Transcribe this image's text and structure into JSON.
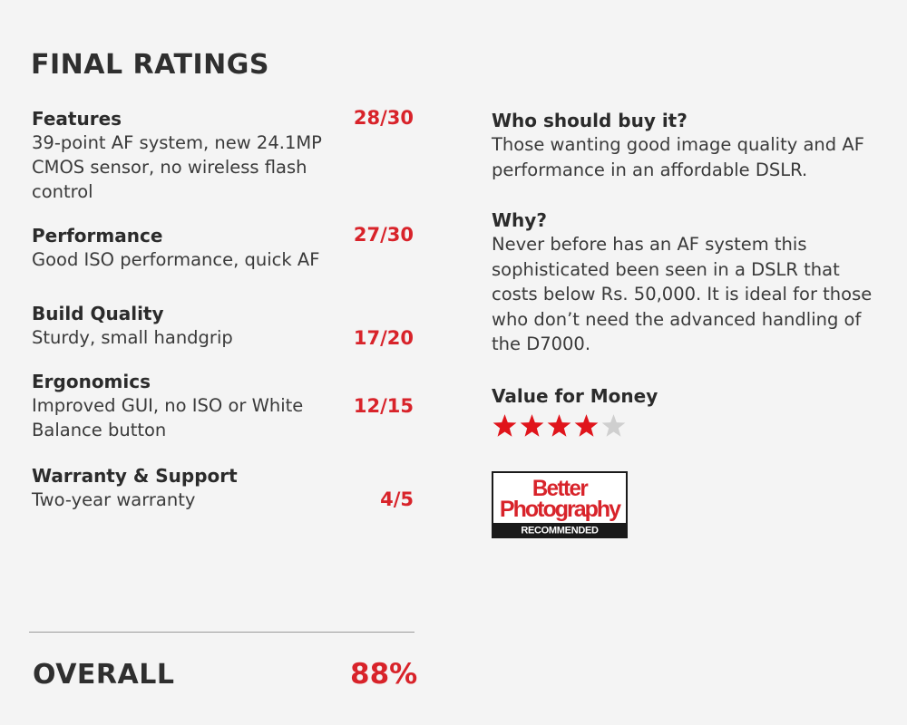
{
  "heading": "FINAL RATINGS",
  "ratings": [
    {
      "name": "Features",
      "description": "39-point AF system, new 24.1MP CMOS sensor, no wireless flash control",
      "score": "28/30"
    },
    {
      "name": "Performance",
      "description": "Good ISO performance, quick AF",
      "score": "27/30"
    },
    {
      "name": "Build Quality",
      "description": "Sturdy, small handgrip",
      "score": "17/20"
    },
    {
      "name": "Ergonomics",
      "description": "Improved GUI, no ISO or White Balance button",
      "score": "12/15"
    },
    {
      "name": "Warranty & Support",
      "description": "Two-year warranty",
      "score": "4/5"
    }
  ],
  "who_should_buy": {
    "heading": "Who should buy it?",
    "text": "Those wanting good image quality and AF performance in an affordable DSLR."
  },
  "why": {
    "heading": "Why?",
    "text": "Never before has an AF system this sophisticated been seen in a DSLR that costs below Rs. 50,000. It is ideal for those who don’t need the advanced handling of the D7000."
  },
  "value_for_money": {
    "heading": "Value for Money",
    "stars_filled": 4,
    "stars_total": 5
  },
  "badge": {
    "line1": "Better",
    "line2": "Photography",
    "line3": "RECOMMENDED"
  },
  "overall": {
    "label": "OVERALL",
    "value": "88%"
  },
  "colors": {
    "accent_red": "#d8232a",
    "star_filled": "#e0141b",
    "star_empty": "#cfcfcf",
    "background": "#f4f4f4"
  }
}
